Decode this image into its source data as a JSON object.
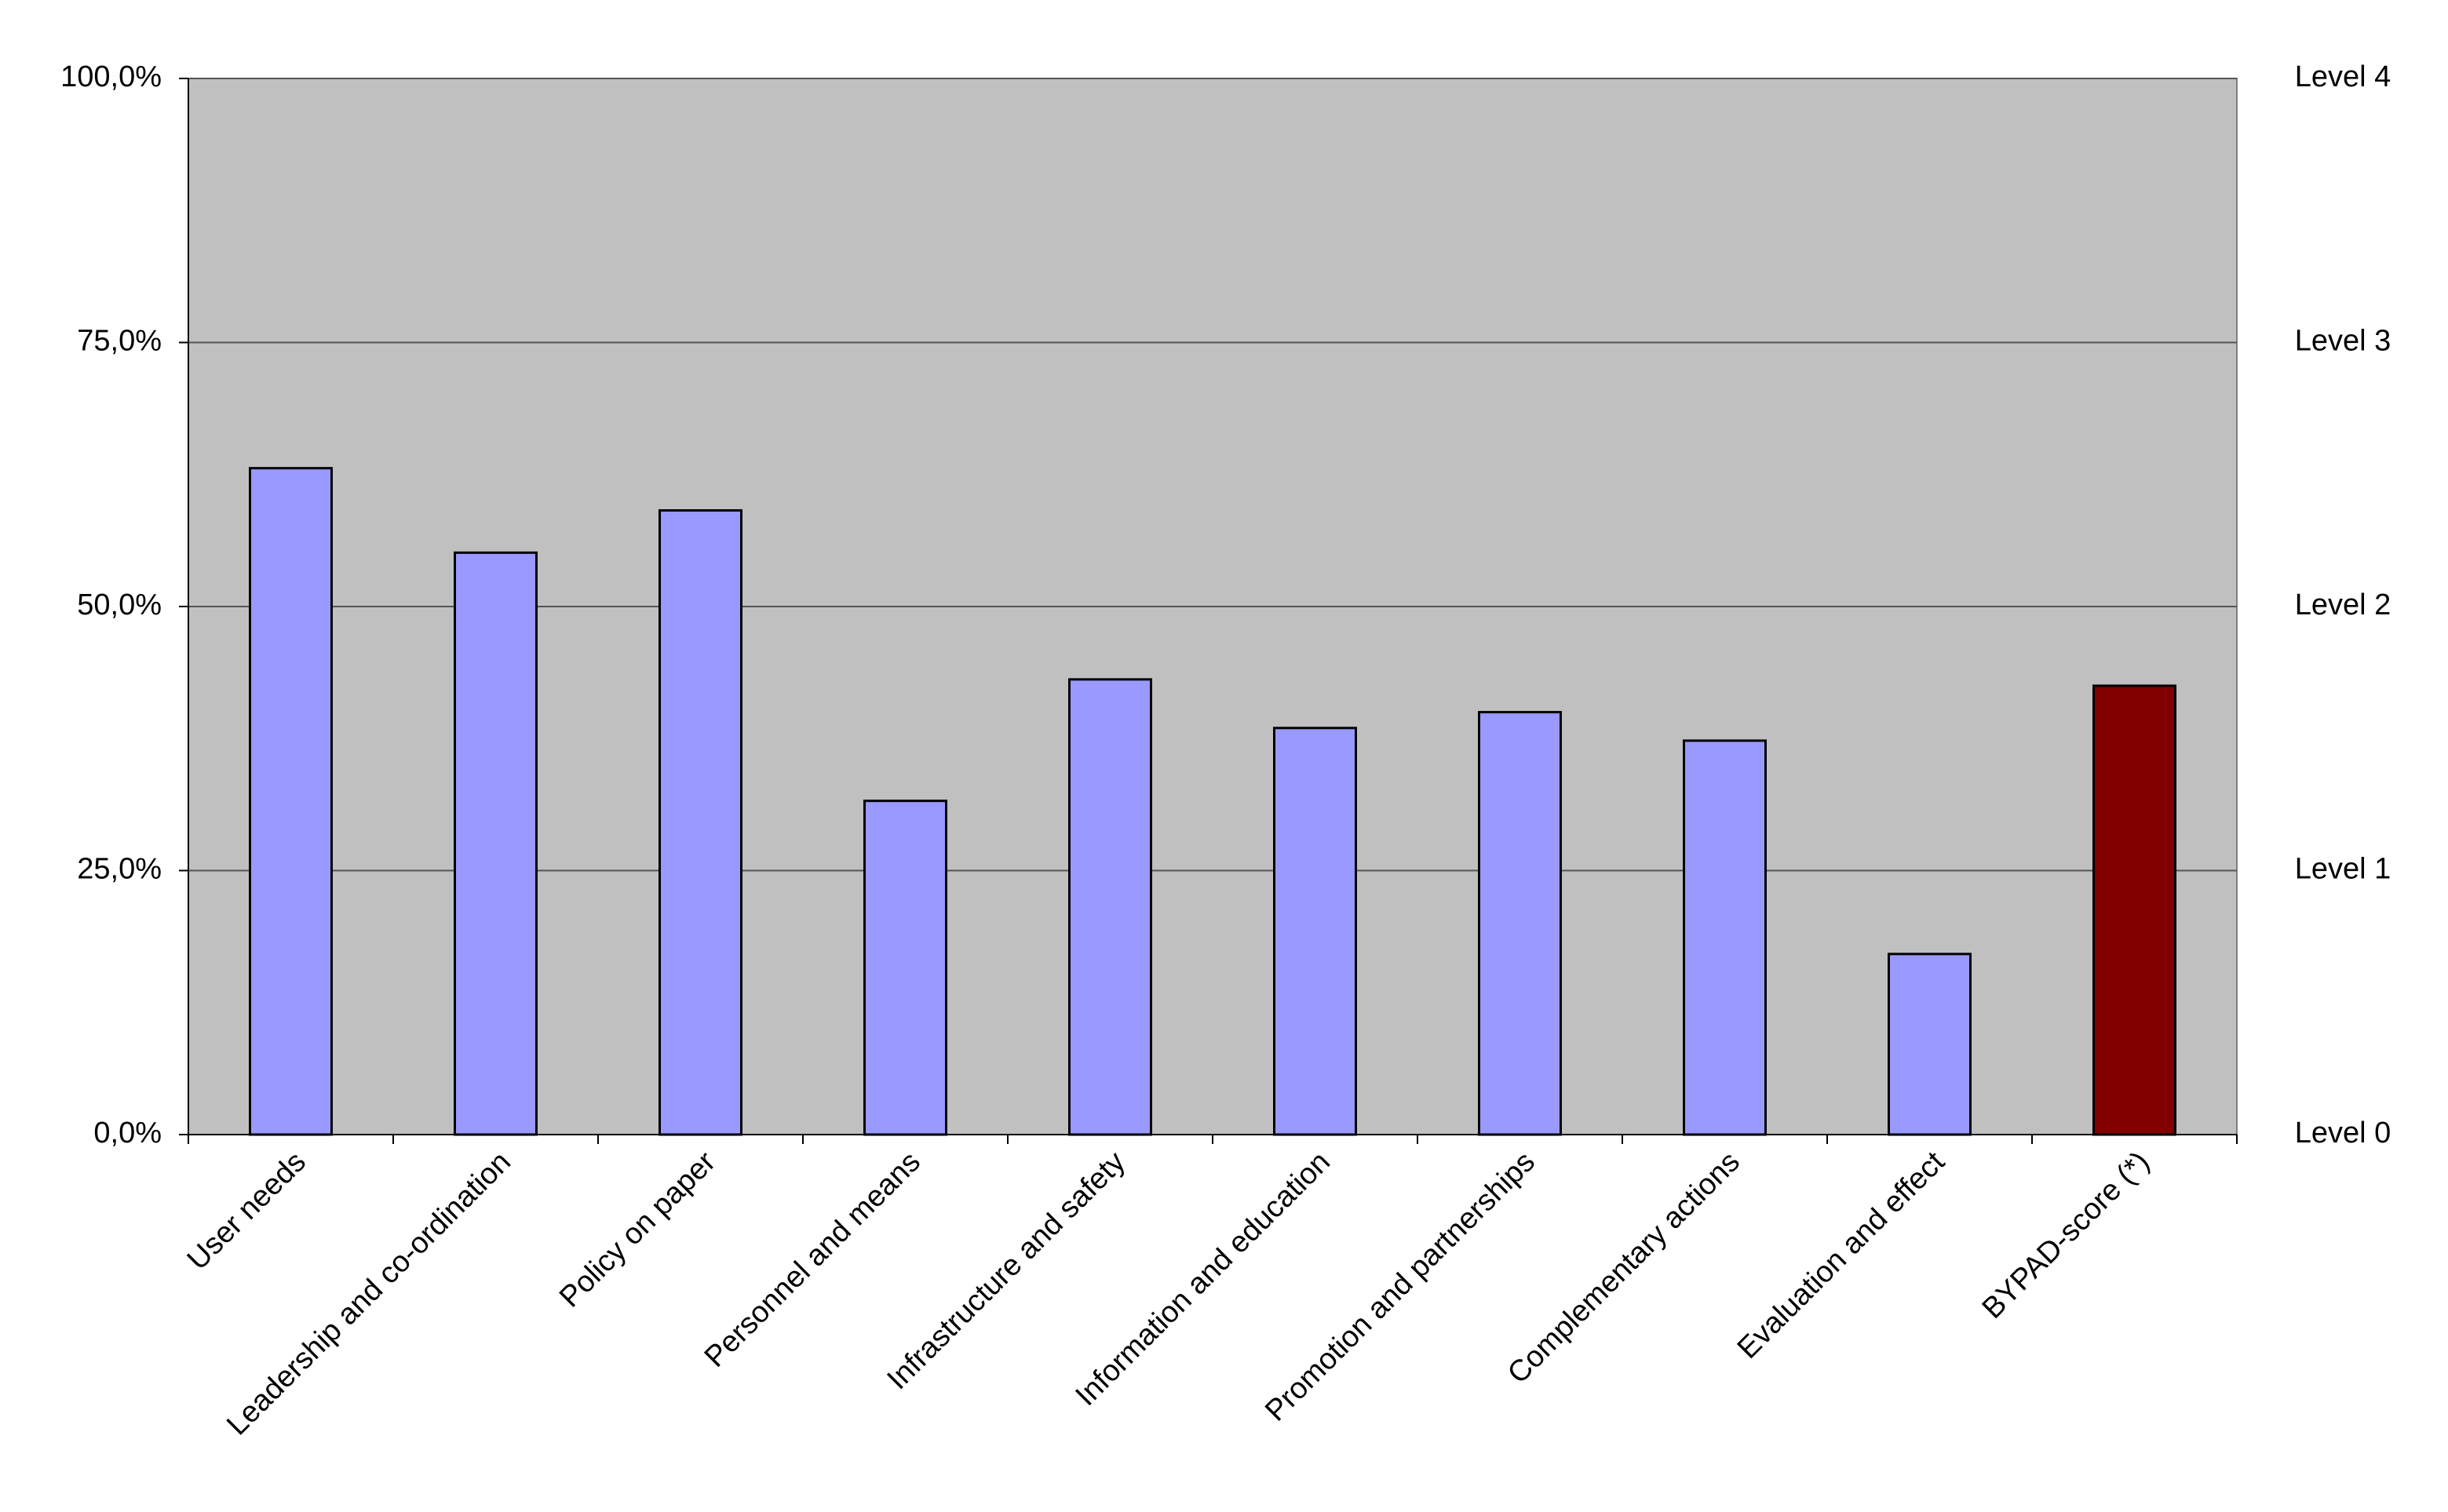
{
  "chart_data": {
    "type": "bar",
    "categories": [
      "User needs",
      "Leadership and co-ordination",
      "Policy on paper",
      "Personnel and means",
      "Infrastructure and safety",
      "Information and education",
      "Promotion and partnerships",
      "Complementary actions",
      "Evaluation and effect",
      "BYPAD-score (*)"
    ],
    "values": [
      63.1,
      55.1,
      59.1,
      31.6,
      43.1,
      38.5,
      40.0,
      37.3,
      17.1,
      42.5
    ],
    "colors": [
      "#9999ff",
      "#9999ff",
      "#9999ff",
      "#9999ff",
      "#9999ff",
      "#9999ff",
      "#9999ff",
      "#9999ff",
      "#9999ff",
      "#800000"
    ],
    "ylim": [
      0,
      100
    ],
    "yticks": [
      {
        "value": 0,
        "label": "0,0%"
      },
      {
        "value": 25,
        "label": "25,0%"
      },
      {
        "value": 50,
        "label": "50,0%"
      },
      {
        "value": 75,
        "label": "75,0%"
      },
      {
        "value": 100,
        "label": "100,0%"
      }
    ],
    "y2lim": [
      0,
      4
    ],
    "y2ticks": [
      {
        "value": 0,
        "label": "Level 0"
      },
      {
        "value": 1,
        "label": "Level 1"
      },
      {
        "value": 2,
        "label": "Level 2"
      },
      {
        "value": 3,
        "label": "Level 3"
      },
      {
        "value": 4,
        "label": "Level 4"
      }
    ],
    "grid": true
  }
}
